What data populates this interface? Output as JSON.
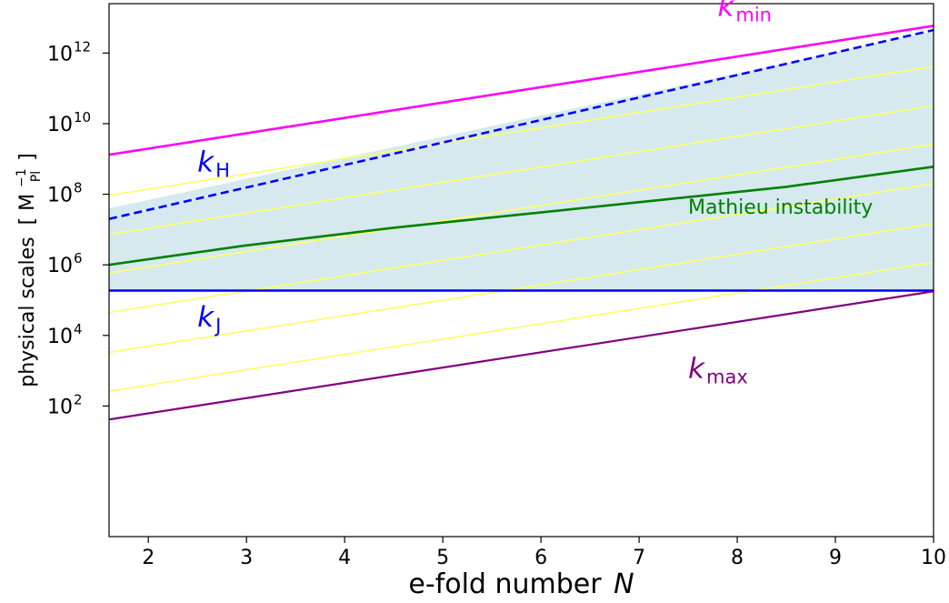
{
  "chart_data": {
    "type": "line",
    "title": "",
    "xlabel": "e-fold number",
    "xlabel_var": "N",
    "ylabel": "physical scales",
    "ylabel_unit": {
      "base": "M",
      "sub": "Pl",
      "sup": "−1"
    },
    "xlim": [
      1.6,
      10.0
    ],
    "ylim_log10": [
      -1.7,
      13.4
    ],
    "yscale": "log",
    "grid": false,
    "x_ticks": [
      2,
      3,
      4,
      5,
      6,
      7,
      8,
      9,
      10
    ],
    "y_ticks": [
      {
        "base": "10",
        "exp": "2",
        "log10": 2
      },
      {
        "base": "10",
        "exp": "4",
        "log10": 4
      },
      {
        "base": "10",
        "exp": "6",
        "log10": 6
      },
      {
        "base": "10",
        "exp": "8",
        "log10": 8
      },
      {
        "base": "10",
        "exp": "10",
        "log10": 10
      },
      {
        "base": "10",
        "exp": "12",
        "log10": 12
      }
    ],
    "shaded_region": {
      "color": "#d5e9ef",
      "upper": [
        [
          1.6,
          7.6
        ],
        [
          10.0,
          12.62
        ]
      ],
      "lower": [
        [
          1.6,
          5.27
        ],
        [
          10.0,
          5.27
        ]
      ]
    },
    "yellow_lines": {
      "color": "#ffff66",
      "slope_log10_per_efold": 0.4343,
      "log10_at_x_1_6": [
        9.1,
        7.97,
        6.86,
        5.77,
        4.65,
        3.52,
        2.42
      ]
    },
    "series": [
      {
        "name": "k_min",
        "color": "#ff00ff",
        "dash": false,
        "width": 2.6,
        "points": [
          [
            1.6,
            9.12
          ],
          [
            10.0,
            12.77
          ]
        ]
      },
      {
        "name": "k_H",
        "color": "#0000ff",
        "dash": true,
        "width": 2.6,
        "points": [
          [
            1.6,
            7.3
          ],
          [
            10.0,
            12.65
          ]
        ]
      },
      {
        "name": "Mathieu instability",
        "color": "#008000",
        "dash": false,
        "width": 2.6,
        "points": [
          [
            1.6,
            6.0
          ],
          [
            3.0,
            6.55
          ],
          [
            4.5,
            7.05
          ],
          [
            6.5,
            7.63
          ],
          [
            8.5,
            8.21
          ],
          [
            10.0,
            8.78
          ]
        ]
      },
      {
        "name": "k_J",
        "color": "#0000ff",
        "dash": false,
        "width": 2.6,
        "points": [
          [
            1.6,
            5.27
          ],
          [
            10.0,
            5.27
          ]
        ]
      },
      {
        "name": "k_max",
        "color": "#800080",
        "dash": false,
        "width": 2.2,
        "points": [
          [
            1.6,
            1.62
          ],
          [
            10.0,
            5.25
          ]
        ]
      }
    ],
    "labels": [
      {
        "id": "kmin",
        "main": "k",
        "sub": "min",
        "color": "#ff00ff",
        "x": 7.8,
        "y_log10": 13.05
      },
      {
        "id": "kH",
        "main": "k",
        "sub": "H",
        "color": "#0000ff",
        "x": 2.5,
        "y_log10": 8.65
      },
      {
        "id": "mathieu",
        "text": "Mathieu instability",
        "color": "#008000",
        "x": 7.5,
        "y_log10": 7.45
      },
      {
        "id": "kJ",
        "main": "k",
        "sub": "J",
        "color": "#0000ff",
        "x": 2.5,
        "y_log10": 4.25
      },
      {
        "id": "kmax",
        "main": "k",
        "sub": "max",
        "color": "#800080",
        "x": 7.5,
        "y_log10": 2.8
      }
    ]
  }
}
